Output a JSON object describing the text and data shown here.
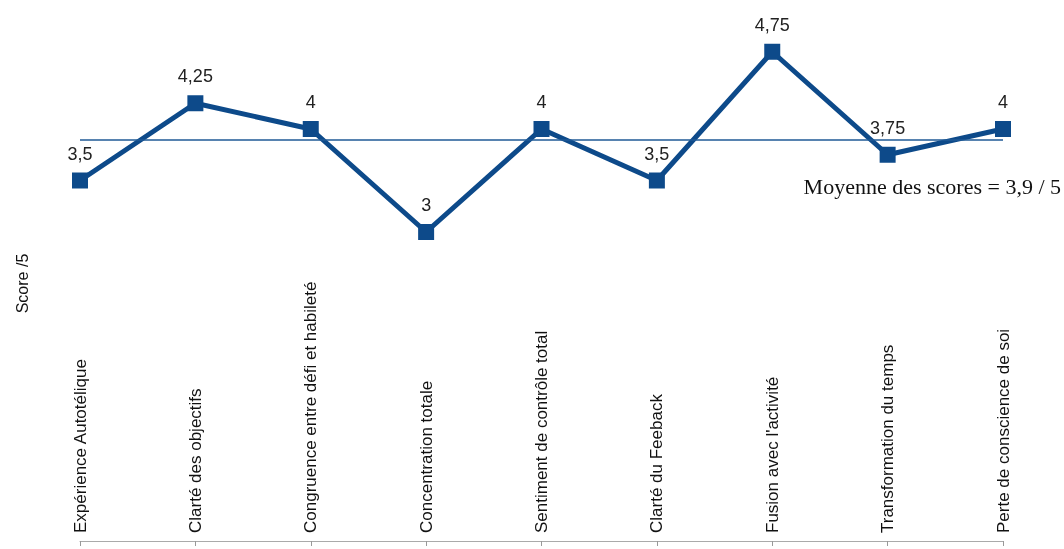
{
  "chart_data": {
    "type": "line",
    "ylabel": "Score /5",
    "categories": [
      "Expérience Autotélique",
      "Clarté des objectifs",
      "Congruence entre défi et habileté",
      "Concentration totale",
      "Sentiment de contrôle total",
      "Clarté du Feeback",
      "Fusion avec l'activité",
      "Transformation du temps",
      "Perte de conscience de soi"
    ],
    "series": [
      {
        "color": "#0d4a8a",
        "values": [
          3.5,
          4.25,
          4,
          3,
          4,
          3.5,
          4.75,
          3.75,
          4
        ],
        "value_labels": [
          "3,5",
          "4,25",
          "4",
          "3",
          "4",
          "3,5",
          "4,75",
          "3,75",
          "4"
        ]
      }
    ],
    "tick_labels": "x",
    "grid": false,
    "marker": "square",
    "line_style": "solid",
    "ref_lines": [
      {
        "axis": "y",
        "value": 3.9,
        "label": "Moyenne des scores = 3,9 / 5",
        "color": "#1f5a96",
        "line_style": "solid"
      }
    ]
  }
}
